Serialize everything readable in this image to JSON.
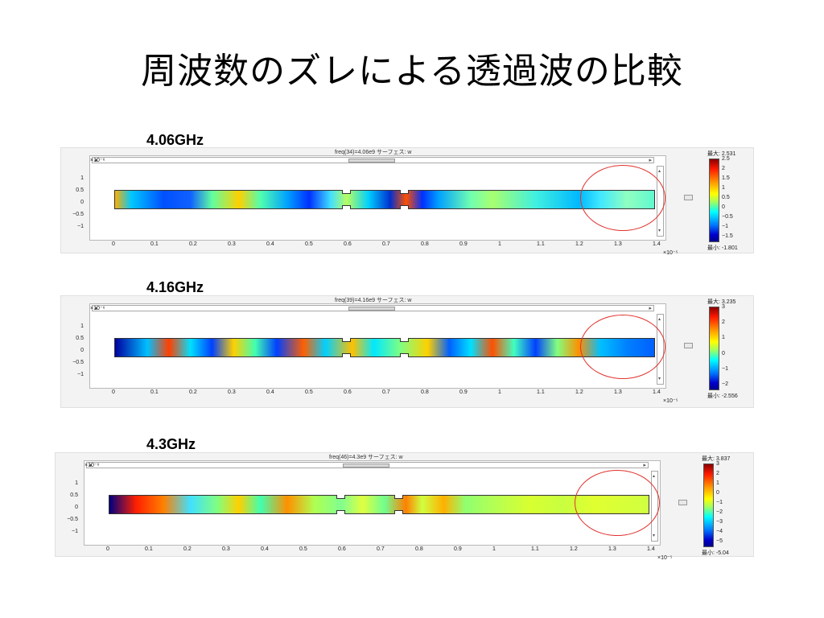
{
  "slide": {
    "title": "周波数のズレによる透過波の比較"
  },
  "panels": [
    {
      "label": "4.06GHz",
      "plot_title": "freq(34)=4.06e9    サーフェス: w",
      "colorbar": {
        "max": "最大: 2.531",
        "min": "最小: -1.801",
        "ticks": [
          "2.5",
          "2",
          "1.5",
          "1",
          "0.5",
          "0",
          "−0.5",
          "−1",
          "−1.5"
        ]
      },
      "fill": "linear-gradient(to right, #ffb000 0%, #00c8ff 3%, #0050ff 9%, #1060ff 14%, #60ffa0 18%, #ffd000 23%, #50ffb0 27%, #00a0ff 32%, #0030ff 36%, #40e0ff 40%, #b8ff60 43%, #00d0ff 47%, #0030d0 51%, #ff5000 54%, #0030ff 57%, #00a0ff 60%, #70ffb0 66%, #a8ff70 70%, #40f0e0 78%, #00b8ff 86%, #40e8ff 90%, #90ffc0 95%, #60f8d0 100%)"
    },
    {
      "label": "4.16GHz",
      "plot_title": "freq(39)=4.16e9    サーフェス: w",
      "colorbar": {
        "max": "最大: 3.235",
        "min": "最小: -2.556",
        "ticks": [
          "3",
          "2",
          "1",
          "0",
          "−1",
          "−2"
        ]
      },
      "fill": "linear-gradient(to right, #0000a0 0%, #00c0ff 6%, #ff4000 10%, #00e0ff 14%, #0040ff 18%, #ffd000 22%, #40ffb0 26%, #0040ff 30%, #ff6000 35%, #00d0ff 39%, #ffc000 44%, #00e8ff 48%, #80ff80 53%, #ffd000 58%, #0060ff 62%, #00e0ff 66%, #ff5000 70%, #40ffc0 74%, #0040ff 78%, #80ff80 82%, #ff9000 86%, #00c0ff 90%, #0080ff 95%, #0060ff 100%)"
    },
    {
      "label": "4.3GHz",
      "plot_title": "freq(46)=4.3e9    サーフェス: w",
      "colorbar": {
        "max": "最大: 3.837",
        "min": "最小: -5.04",
        "ticks": [
          "3",
          "2",
          "1",
          "0",
          "−1",
          "−2",
          "−3",
          "−4",
          "−5"
        ]
      },
      "fill": "linear-gradient(to right, #000080 0%, #ff2000 5%, #ff8000 10%, #40e0ff 15%, #80ff80 20%, #ffd000 24%, #40ffb0 28%, #ff9000 33%, #b0ff50 38%, #80ff90 43%, #e0ff40 47%, #70ff90 51%, #ff8000 55%, #d0ff40 58%, #ffb000 62%, #90ff70 66%, #b8ff50 72%, #d8ff30 78%, #c8ff40 84%, #e0ff30 90%, #d8ff38 95%, #d0ff40 100%)"
    }
  ],
  "axes": {
    "y_exponent": "×10⁻⁶",
    "x_exponent": "×10⁻⁵",
    "y_ticks": [
      "1",
      "0.5",
      "0",
      "−0.5",
      "−1"
    ],
    "x_ticks": [
      "0",
      "0.1",
      "0.2",
      "0.3",
      "0.4",
      "0.5",
      "0.6",
      "0.7",
      "0.8",
      "0.9",
      "1",
      "1.1",
      "1.2",
      "1.3",
      "1.4"
    ]
  }
}
